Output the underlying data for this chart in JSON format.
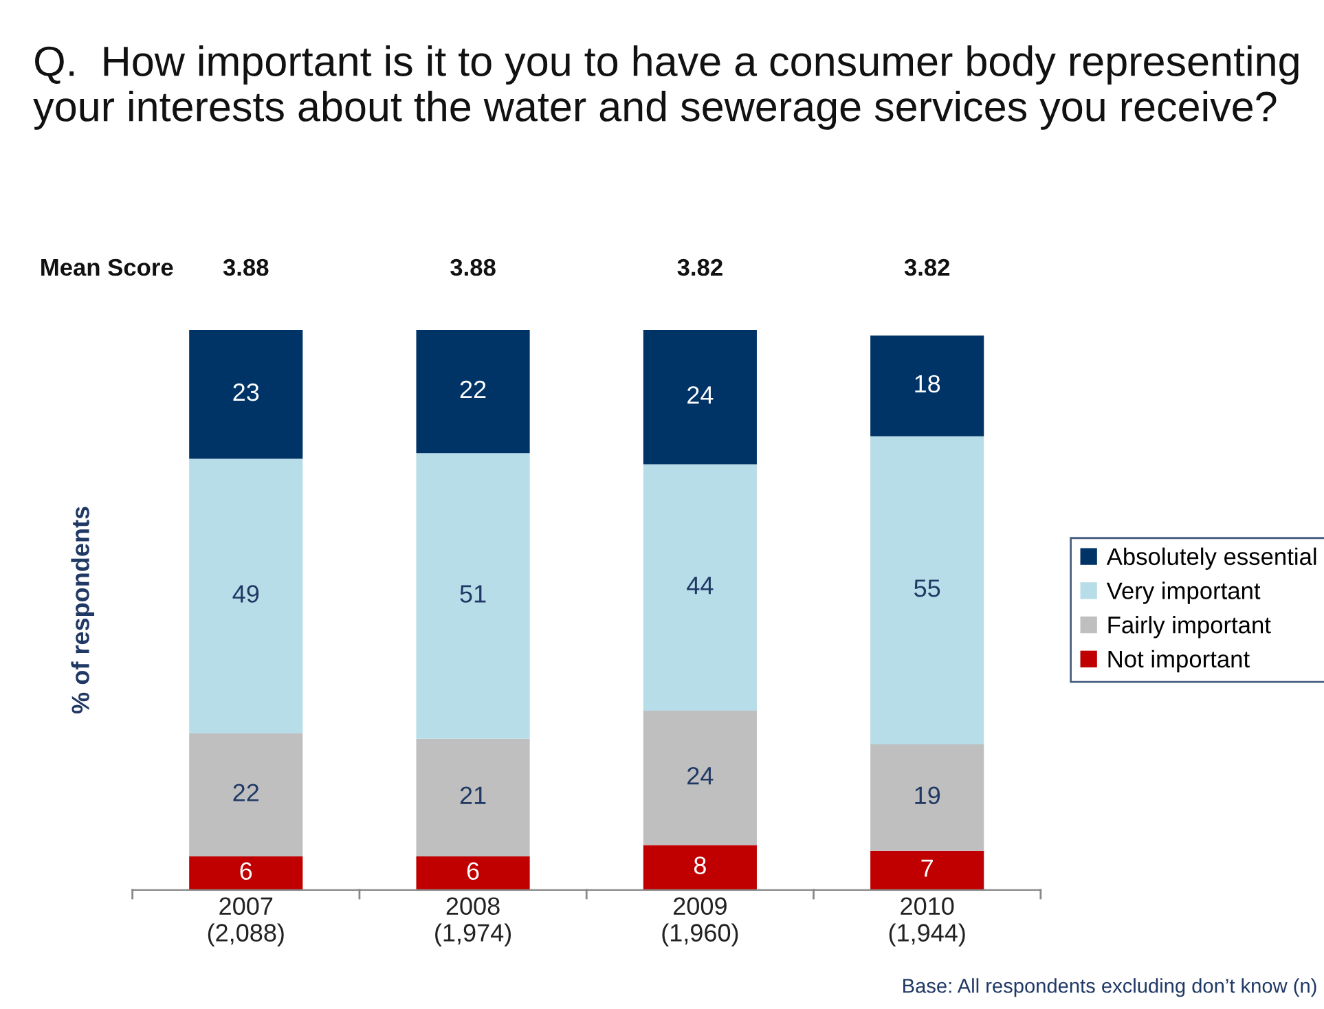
{
  "chart_data": {
    "type": "bar",
    "title": "Q.  How important is it to you to have a consumer body representing your interests about the water and sewerage services you receive?",
    "ylabel": "% of respondents",
    "categories": [
      "2007\n(2,088)",
      "2008\n(1,974)",
      "2009\n(1,960)",
      "2010\n(1,944)"
    ],
    "stacked": true,
    "data_labels": true,
    "legend": "right",
    "tick_labels": "x",
    "grid": false,
    "series": [
      {
        "name": "Not important",
        "color": "#c00000",
        "values": [
          6,
          6,
          8,
          7
        ]
      },
      {
        "name": "Fairly important",
        "color": "#bfbfbf",
        "values": [
          22,
          21,
          24,
          19
        ]
      },
      {
        "name": "Very important",
        "color": "#b7dde8",
        "values": [
          49,
          51,
          44,
          55
        ]
      },
      {
        "name": "Absolutely essential",
        "color": "#003366",
        "values": [
          23,
          22,
          24,
          18
        ]
      }
    ],
    "annotations": [
      "Mean Score",
      "3.88",
      "3.88",
      "3.82",
      "3.82",
      "Base: All respondents excluding don’t know (n)"
    ]
  }
}
